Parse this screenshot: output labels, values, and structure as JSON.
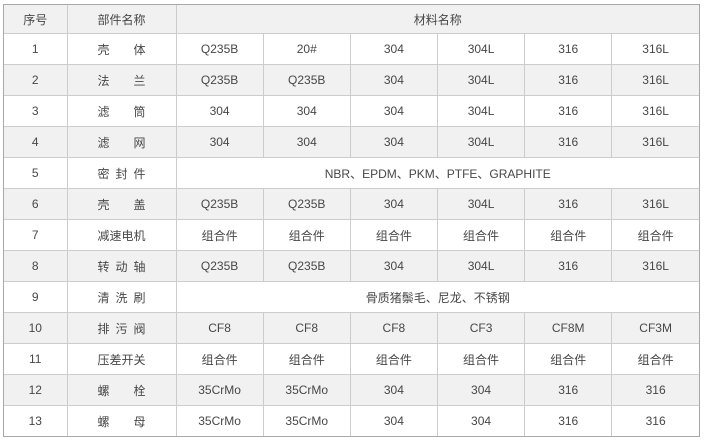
{
  "table": {
    "headers": {
      "no": "序号",
      "part": "部件名称",
      "material": "材料名称"
    },
    "rows": [
      {
        "no": "1",
        "part": "壳体",
        "materials": [
          "Q235B",
          "20#",
          "304",
          "304L",
          "316",
          "316L"
        ]
      },
      {
        "no": "2",
        "part": "法兰",
        "materials": [
          "Q235B",
          "Q235B",
          "304",
          "304L",
          "316",
          "316L"
        ]
      },
      {
        "no": "3",
        "part": "滤筒",
        "materials": [
          "304",
          "304",
          "304",
          "304L",
          "316",
          "316L"
        ]
      },
      {
        "no": "4",
        "part": "滤网",
        "materials": [
          "304",
          "304",
          "304",
          "304L",
          "316",
          "316L"
        ]
      },
      {
        "no": "5",
        "part": "密封件",
        "materials_span": "NBR、EPDM、PKM、PTFE、GRAPHITE"
      },
      {
        "no": "6",
        "part": "壳盖",
        "materials": [
          "Q235B",
          "Q235B",
          "304",
          "304L",
          "316",
          "316L"
        ]
      },
      {
        "no": "7",
        "part": "减速电机",
        "materials": [
          "组合件",
          "组合件",
          "组合件",
          "组合件",
          "组合件",
          "组合件"
        ]
      },
      {
        "no": "8",
        "part": "转动轴",
        "materials": [
          "Q235B",
          "Q235B",
          "304",
          "304L",
          "316",
          "316L"
        ]
      },
      {
        "no": "9",
        "part": "清洗刷",
        "materials_span": "骨质猪鬃毛、尼龙、不锈钢"
      },
      {
        "no": "10",
        "part": "排污阀",
        "materials": [
          "CF8",
          "CF8",
          "CF8",
          "CF3",
          "CF8M",
          "CF3M"
        ]
      },
      {
        "no": "11",
        "part": "压差开关",
        "materials": [
          "组合件",
          "组合件",
          "组合件",
          "组合件",
          "组合件",
          "组合件"
        ]
      },
      {
        "no": "12",
        "part": "螺栓",
        "materials": [
          "35CrMo",
          "35CrMo",
          "304",
          "304",
          "316",
          "316"
        ]
      },
      {
        "no": "13",
        "part": "螺母",
        "materials": [
          "35CrMo",
          "35CrMo",
          "304",
          "304",
          "316",
          "316"
        ]
      }
    ],
    "colors": {
      "band": "#f1f1f1",
      "row": "#ffffff",
      "border_inner": "#cccccc",
      "border_outer": "#a8a8a8",
      "text": "#474747"
    }
  }
}
